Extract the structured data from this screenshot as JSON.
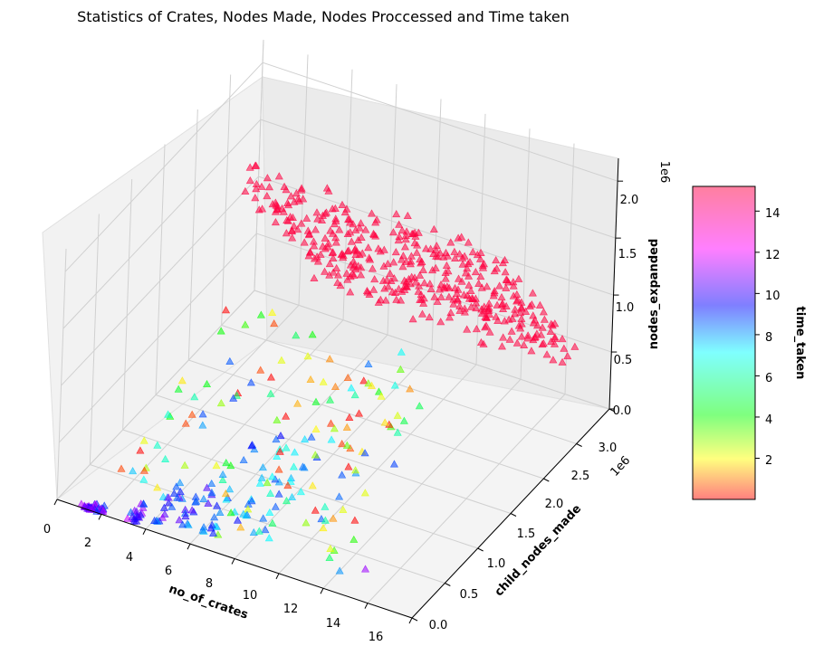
{
  "chart_data": {
    "type": "scatter",
    "title": "Statistics of Crates, Nodes Made, Nodes Proccessed and Time taken",
    "marker": "triangle",
    "colormap": "gist_rainbow_r",
    "x": {
      "label": "no_of_crates",
      "ticks": [
        "0",
        "2",
        "4",
        "6",
        "8",
        "10",
        "12",
        "14",
        "16"
      ],
      "range": [
        0,
        16
      ]
    },
    "y": {
      "label": "child_nodes_made",
      "ticks": [
        "0.0",
        "0.5",
        "1.0",
        "1.5",
        "2.0",
        "2.5",
        "3.0"
      ],
      "range": [
        0,
        3000000
      ],
      "offset_text": "1e6"
    },
    "z": {
      "label": "nodes_expanded",
      "ticks": [
        "0.0",
        "0.5",
        "1.0",
        "1.5",
        "2.0"
      ],
      "range": [
        0,
        2200000
      ],
      "offset_text": "1e6"
    },
    "colorbar": {
      "label": "time_taken",
      "ticks": [
        "2",
        "4",
        "6",
        "8",
        "10",
        "12",
        "14"
      ],
      "range": [
        0,
        15.2
      ]
    }
  }
}
